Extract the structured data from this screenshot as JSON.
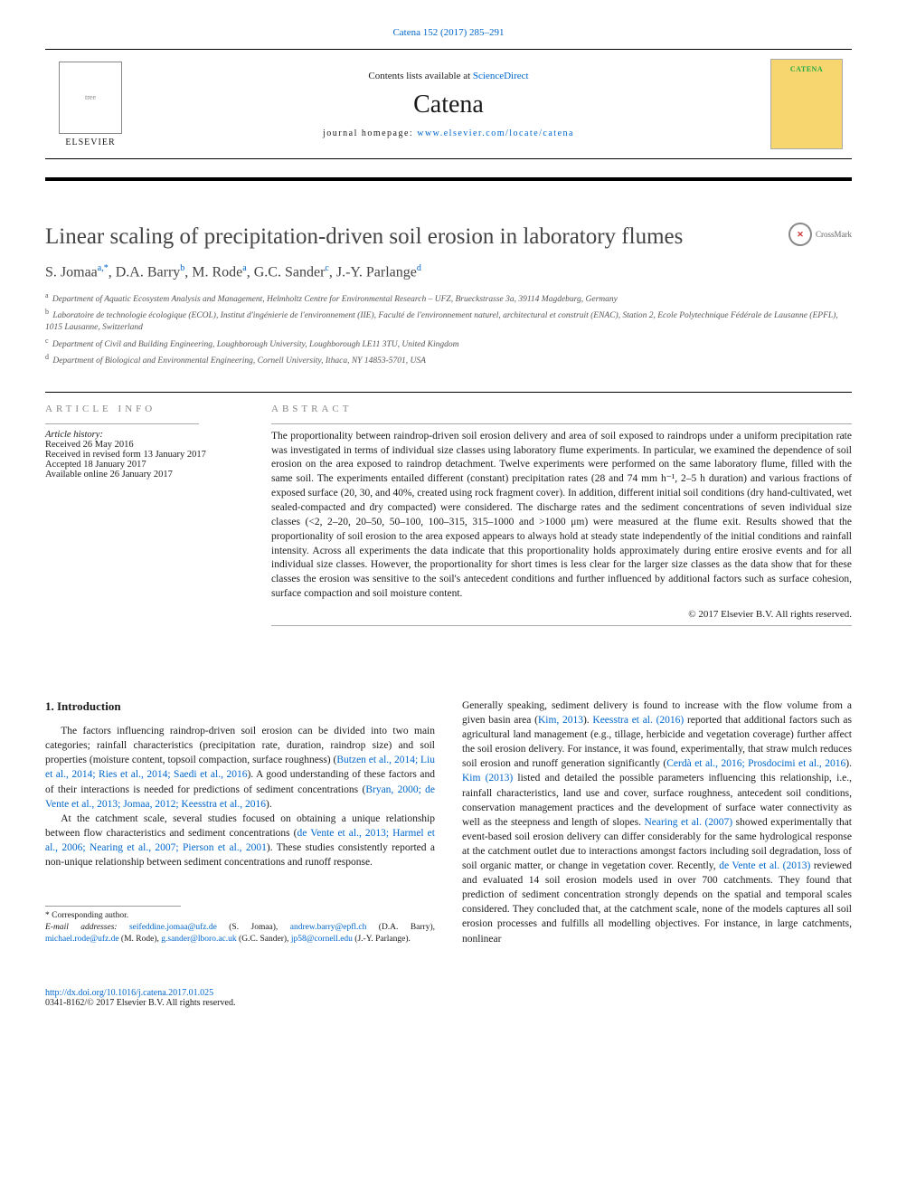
{
  "citation": {
    "journal": "Catena",
    "vol_pages": "152 (2017) 285–291",
    "link_text": "Catena 152 (2017) 285–291"
  },
  "header": {
    "contents_prefix": "Contents lists available at ",
    "contents_link": "ScienceDirect",
    "journal_name": "Catena",
    "homepage_prefix": "journal homepage: ",
    "homepage_link": "www.elsevier.com/locate/catena",
    "publisher_name": "ELSEVIER",
    "cover_title": "CATENA"
  },
  "crossmark": "CrossMark",
  "title": "Linear scaling of precipitation-driven soil erosion in laboratory flumes",
  "authors_html": "S. Jomaa<sup>a,*</sup>, D.A. Barry<sup>b</sup>, M. Rode<sup>a</sup>, G.C. Sander<sup>c</sup>, J.-Y. Parlange<sup>d</sup>",
  "affiliations": [
    {
      "sup": "a",
      "text": "Department of Aquatic Ecosystem Analysis and Management, Helmholtz Centre for Environmental Research – UFZ, Brueckstrasse 3a, 39114 Magdeburg, Germany"
    },
    {
      "sup": "b",
      "text": "Laboratoire de technologie écologique (ECOL), Institut d'ingénierie de l'environnement (IIE), Faculté de l'environnement naturel, architectural et construit (ENAC), Station 2, Ecole Polytechnique Fédérale de Lausanne (EPFL), 1015 Lausanne, Switzerland"
    },
    {
      "sup": "c",
      "text": "Department of Civil and Building Engineering, Loughborough University, Loughborough LE11 3TU, United Kingdom"
    },
    {
      "sup": "d",
      "text": "Department of Biological and Environmental Engineering, Cornell University, Ithaca, NY 14853-5701, USA"
    }
  ],
  "article_info": {
    "heading": "article info",
    "history_label": "Article history:",
    "items": [
      "Received 26 May 2016",
      "Received in revised form 13 January 2017",
      "Accepted 18 January 2017",
      "Available online 26 January 2017"
    ]
  },
  "abstract": {
    "heading": "abstract",
    "text": "The proportionality between raindrop-driven soil erosion delivery and area of soil exposed to raindrops under a uniform precipitation rate was investigated in terms of individual size classes using laboratory flume experiments. In particular, we examined the dependence of soil erosion on the area exposed to raindrop detachment. Twelve experiments were performed on the same laboratory flume, filled with the same soil. The experiments entailed different (constant) precipitation rates (28 and 74 mm h⁻¹, 2–5 h duration) and various fractions of exposed surface (20, 30, and 40%, created using rock fragment cover). In addition, different initial soil conditions (dry hand-cultivated, wet sealed-compacted and dry compacted) were considered. The discharge rates and the sediment concentrations of seven individual size classes (<2, 2–20, 20–50, 50–100, 100–315, 315–1000 and >1000 μm) were measured at the flume exit. Results showed that the proportionality of soil erosion to the area exposed appears to always hold at steady state independently of the initial conditions and rainfall intensity. Across all experiments the data indicate that this proportionality holds approximately during entire erosive events and for all individual size classes. However, the proportionality for short times is less clear for the larger size classes as the data show that for these classes the erosion was sensitive to the soil's antecedent conditions and further influenced by additional factors such as surface cohesion, surface compaction and soil moisture content.",
    "copyright": "© 2017 Elsevier B.V. All rights reserved."
  },
  "body": {
    "section_heading": "1. Introduction",
    "p1_a": "The factors influencing raindrop-driven soil erosion can be divided into two main categories; rainfall characteristics (precipitation rate, duration, raindrop size) and soil properties (moisture content, topsoil compaction, surface roughness) (",
    "p1_link1": "Butzen et al., 2014; Liu et al., 2014; Ries et al., 2014; Saedi et al., 2016",
    "p1_b": "). A good understanding of these factors and of their interactions is needed for predictions of sediment concentrations (",
    "p1_link2": "Bryan, 2000; de Vente et al., 2013; Jomaa, 2012; Keesstra et al., 2016",
    "p1_c": ").",
    "p2_a": "At the catchment scale, several studies focused on obtaining a unique relationship between flow characteristics and sediment concentrations (",
    "p2_link1": "de Vente et al., 2013; Harmel et al., 2006; Nearing et al., 2007; Pierson et al., 2001",
    "p2_b": "). These studies consistently reported a non-unique relationship between sediment concentrations and runoff response.",
    "p3_a": "Generally speaking, sediment delivery is found to increase with the flow volume from a given basin area (",
    "p3_link1": "Kim, 2013",
    "p3_b": "). ",
    "p3_link2": "Keesstra et al. (2016)",
    "p3_c": " reported that additional factors such as agricultural land management (e.g., tillage, herbicide and vegetation coverage) further affect the soil erosion delivery. For instance, it was found, experimentally, that straw mulch reduces soil erosion and runoff generation significantly (",
    "p3_link3": "Cerdà et al., 2016; Prosdocimi et al., 2016",
    "p3_d": "). ",
    "p3_link4": "Kim (2013)",
    "p3_e": " listed and detailed the possible parameters influencing this relationship, i.e., rainfall characteristics, land use and cover, surface roughness, antecedent soil conditions, conservation management practices and the development of surface water connectivity as well as the steepness and length of slopes. ",
    "p3_link5": "Nearing et al. (2007)",
    "p3_f": " showed experimentally that event-based soil erosion delivery can differ considerably for the same hydrological response at the catchment outlet due to interactions amongst factors including soil degradation, loss of soil organic matter, or change in vegetation cover. Recently, ",
    "p3_link6": "de Vente et al. (2013)",
    "p3_g": " reviewed and evaluated 14 soil erosion models used in over 700 catchments. They found that prediction of sediment concentration strongly depends on the spatial and temporal scales considered. They concluded that, at the catchment scale, none of the models captures all soil erosion processes and fulfills all modelling objectives. For instance, in large catchments, nonlinear"
  },
  "footnotes": {
    "corr": "* Corresponding author.",
    "emails_label": "E-mail addresses:",
    "emails": [
      {
        "addr": "seifeddine.jomaa@ufz.de",
        "name": "(S. Jomaa)"
      },
      {
        "addr": "andrew.barry@epfl.ch",
        "name": "(D.A. Barry)"
      },
      {
        "addr": "michael.rode@ufz.de",
        "name": "(M. Rode)"
      },
      {
        "addr": "g.sander@lboro.ac.uk",
        "name": "(G.C. Sander)"
      },
      {
        "addr": "jp58@cornell.edu",
        "name": "(J.-Y. Parlange)"
      }
    ]
  },
  "bottom": {
    "doi": "http://dx.doi.org/10.1016/j.catena.2017.01.025",
    "issn_line": "0341-8162/© 2017 Elsevier B.V. All rights reserved."
  },
  "colors": {
    "link": "#0066cc",
    "text": "#1a1a1a",
    "muted": "#555555",
    "cover_bg": "#f7d66f"
  }
}
